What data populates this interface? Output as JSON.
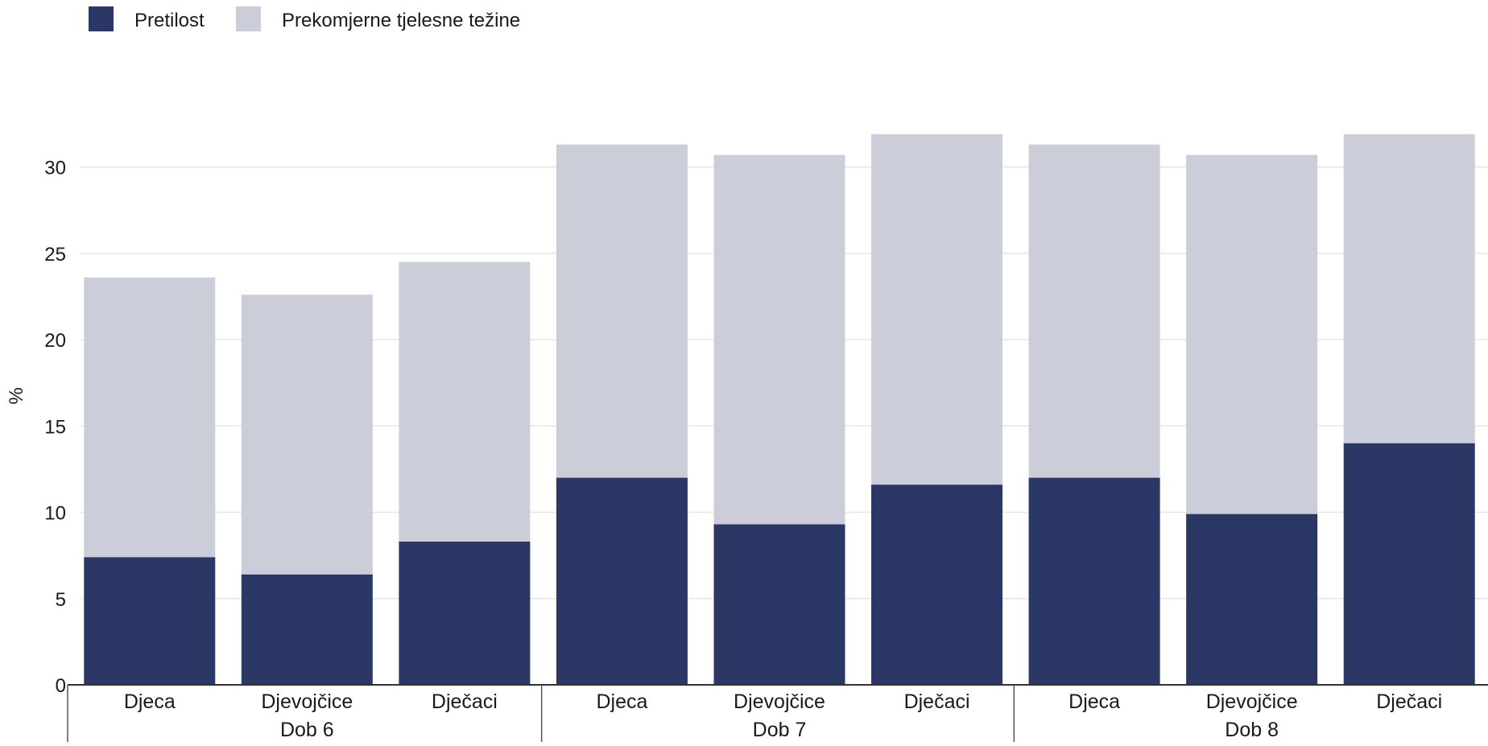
{
  "chart_data": {
    "type": "bar",
    "stacked": true,
    "ylabel": "%",
    "ylim": [
      0,
      32
    ],
    "yticks": [
      0,
      5,
      10,
      15,
      20,
      25,
      30
    ],
    "grid": true,
    "legend_position": "top-left",
    "categories": [
      "Djeca",
      "Djevojčice",
      "Dječaci",
      "Djeca",
      "Djevojčice",
      "Dječaci",
      "Djeca",
      "Djevojčice",
      "Dječaci"
    ],
    "groups": [
      {
        "label": "Dob 6",
        "categories": [
          "Djeca",
          "Djevojčice",
          "Dječaci"
        ]
      },
      {
        "label": "Dob 7",
        "categories": [
          "Djeca",
          "Djevojčice",
          "Dječaci"
        ]
      },
      {
        "label": "Dob 8",
        "categories": [
          "Djeca",
          "Djevojčice",
          "Dječaci"
        ]
      }
    ],
    "series": [
      {
        "name": "Pretilost",
        "color": "#2b3764",
        "values": [
          7.4,
          6.4,
          8.3,
          12.0,
          9.3,
          11.6,
          12.0,
          9.9,
          14.0
        ]
      },
      {
        "name": "Prekomjerne tjelesne težine",
        "color": "#cbcdd9",
        "values": [
          16.2,
          16.2,
          16.2,
          19.3,
          21.4,
          20.3,
          19.3,
          20.8,
          17.9
        ]
      }
    ]
  }
}
